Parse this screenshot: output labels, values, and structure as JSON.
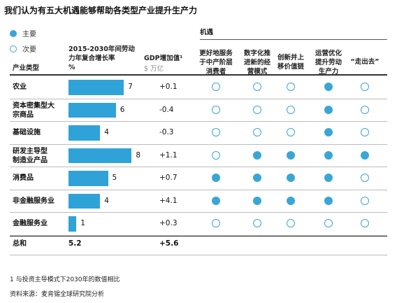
{
  "title": "我们认为有五大机遇能够帮助各类型产业提升生产力",
  "legend": {
    "primary": "主要",
    "secondary": "次要"
  },
  "headers": {
    "industry": "产业类型",
    "growth_line1": "2015-2030年间劳动",
    "growth_line2": "力年复合增长率",
    "growth_unit": "%",
    "gdp": "GDP增加值¹",
    "gdp_unit": "$ 万亿",
    "opportunities_group": "机遇",
    "opportunities": [
      [
        "更好地服务",
        "于中产阶层",
        "消费者"
      ],
      [
        "数字化推",
        "进新的经",
        "营模式"
      ],
      [
        "创新并上",
        "移价值链"
      ],
      [
        "运营优化",
        "提升劳动",
        "生产力"
      ],
      [
        "“走出去”"
      ]
    ]
  },
  "rows": [
    {
      "label": [
        "农业"
      ],
      "growth": 7,
      "gdp": "+0.1",
      "opps": [
        "secondary",
        "secondary",
        "secondary",
        "primary",
        "secondary"
      ]
    },
    {
      "label": [
        "资本密集型大",
        "宗商品"
      ],
      "growth": 6,
      "gdp": "-0.4",
      "opps": [
        "secondary",
        "secondary",
        "secondary",
        "primary",
        "secondary"
      ]
    },
    {
      "label": [
        "基础设施"
      ],
      "growth": 4,
      "gdp": "-0.3",
      "opps": [
        "secondary",
        "secondary",
        "secondary",
        "primary",
        "secondary"
      ]
    },
    {
      "label": [
        "研发主导型",
        "制造业产品"
      ],
      "growth": 8,
      "gdp": "+1.1",
      "opps": [
        "secondary",
        "primary",
        "primary",
        "primary",
        "primary"
      ]
    },
    {
      "label": [
        "消费品"
      ],
      "growth": 5,
      "gdp": "+0.7",
      "opps": [
        "primary",
        "primary",
        "primary",
        "primary",
        "secondary"
      ]
    },
    {
      "label": [
        "非金融服务业"
      ],
      "growth": 4,
      "gdp": "+4.1",
      "opps": [
        "primary",
        "primary",
        "primary",
        "primary",
        "secondary"
      ]
    },
    {
      "label": [
        "金融服务业"
      ],
      "growth": 1,
      "gdp": "+0.3",
      "opps": [
        "secondary",
        "secondary",
        "secondary",
        "secondary",
        "secondary"
      ]
    }
  ],
  "total": {
    "label": "总和",
    "growth": "5.2",
    "gdp": "+5.6"
  },
  "footnote": "1 与投资主导模式下2030年的数值相比",
  "source": "资料来源：麦肯锡全球研究院分析",
  "colors": {
    "accent": "#2fa3d8"
  },
  "chart_data": {
    "type": "bar",
    "categories": [
      "农业",
      "资本密集型大宗商品",
      "基础设施",
      "研发主导型制造业产品",
      "消费品",
      "非金融服务业",
      "金融服务业"
    ],
    "series": [
      {
        "name": "2015-2030年间劳动力年复合增长率",
        "values": [
          7,
          6,
          4,
          8,
          5,
          4,
          1
        ]
      },
      {
        "name": "GDP增加值¹",
        "values": [
          0.1,
          -0.4,
          -0.3,
          1.1,
          0.7,
          4.1,
          0.3
        ]
      }
    ],
    "xlabel": "",
    "ylabel": "",
    "xlim": [
      0,
      8
    ]
  }
}
